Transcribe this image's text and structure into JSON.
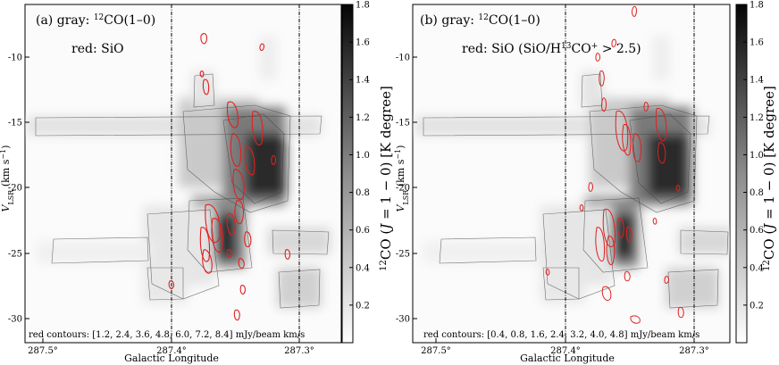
{
  "chart_data": [
    {
      "type": "heatmap",
      "panel": "a",
      "annotations": {
        "gray": "(a) gray: 12CO(1–0)",
        "red": "red: SiO",
        "contours": "red contours: [1.2, 2.4, 3.6, 4.8, 6.0, 7.2, 8.4] mJy/beam km/s"
      },
      "xlabel": "Galactic Longitude",
      "ylabel": "V_LSR (km s^-1)",
      "x_ticks": [
        "287.5°",
        "287.4°",
        "287.3°"
      ],
      "y_ticks": [
        "-10",
        "-15",
        "-20",
        "-25",
        "-30"
      ],
      "xlim": [
        287.56,
        287.25
      ],
      "ylim": [
        -32,
        -6
      ],
      "vertical_lines": [
        287.4,
        287.305
      ],
      "colorbar": {
        "label": "12CO (J = 1 − 0) [K degree]",
        "ticks": [
          "0.2",
          "0.4",
          "0.6",
          "0.8",
          "1.0",
          "1.2",
          "1.4",
          "1.6",
          "1.8"
        ],
        "range": [
          0,
          1.8
        ]
      }
    },
    {
      "type": "heatmap",
      "panel": "b",
      "annotations": {
        "gray": "(b) gray: 12CO(1–0)",
        "red": "red: SiO (SiO/H13CO+ > 2.5)",
        "contours": "red contours: [0.4, 0.8, 1.6, 2.4, 3.2, 4.0, 4.8] mJy/beam km/s"
      },
      "xlabel": "Galactic Longitude",
      "ylabel": "V_LSR (km s^-1)",
      "x_ticks": [
        "287.5°",
        "287.4°",
        "287.3°"
      ],
      "y_ticks": [
        "-10",
        "-15",
        "-20",
        "-25",
        "-30"
      ],
      "xlim": [
        287.56,
        287.25
      ],
      "ylim": [
        -32,
        -6
      ],
      "vertical_lines": [
        287.4,
        287.305
      ],
      "colorbar": {
        "label": "12CO (J = 1 − 0) [K degree]",
        "ticks": [
          "0.2",
          "0.4",
          "0.6",
          "0.8",
          "1.0",
          "1.2",
          "1.4",
          "1.6",
          "1.8"
        ],
        "range": [
          0,
          1.8
        ]
      }
    }
  ],
  "text": {
    "panel_a_title": "(a) gray: ",
    "panel_b_title": "(b) gray: ",
    "co_sup": "12",
    "co_name": "CO(1–0)",
    "panel_a_red": "red: SiO",
    "panel_b_red_pre": "red: SiO (SiO/H",
    "panel_b_red_sup1": "13",
    "panel_b_red_mid": "CO",
    "panel_b_red_sup2": "+",
    "panel_b_red_post": " > 2.5)",
    "contours_a": "red contours: [1.2, 2.4, 3.6, 4.8, 6.0, 7.2, 8.4] mJy/beam km/s",
    "contours_b": "red contours: [0.4, 0.8, 1.6, 2.4, 3.2, 4.0, 4.8] mJy/beam km/s",
    "xlabel": "Galactic Longitude",
    "ylabel_v": "V",
    "ylabel_sub": "LSR",
    "ylabel_unit": " (km s",
    "ylabel_exp": "−1",
    "ylabel_close": ")",
    "cb_sup": "12",
    "cb_co": "CO (",
    "cb_j": "J",
    "cb_rest": " = 1 − 0) [K degree]"
  }
}
